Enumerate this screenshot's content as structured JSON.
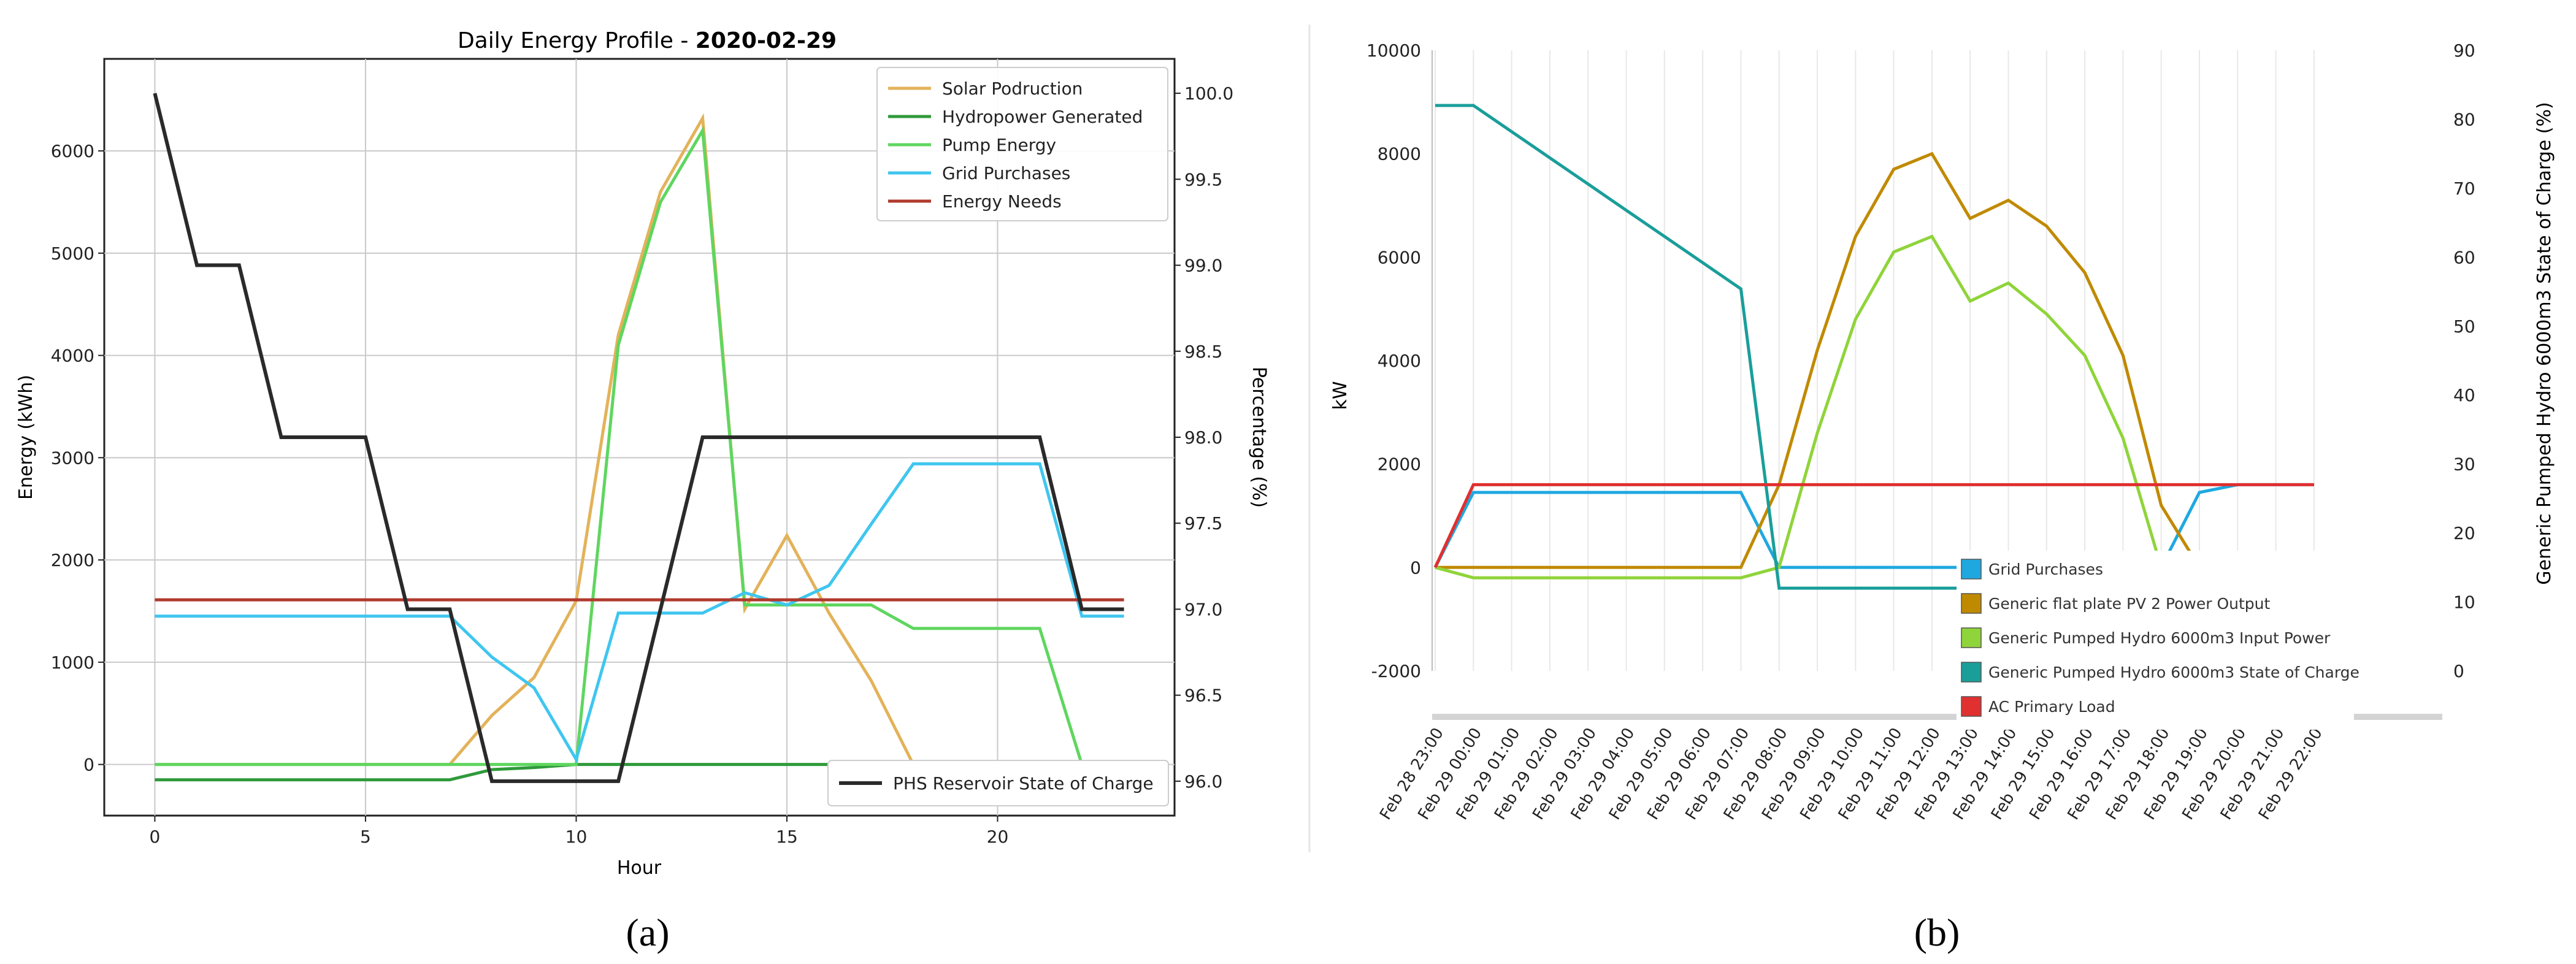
{
  "panel_labels": {
    "a": "(a)",
    "b": "(b)"
  },
  "chart_data": [
    {
      "type": "line",
      "title_prefix": "Daily Energy Profile - ",
      "title_date": "2020-02-29",
      "xlabel": "Hour",
      "ylabel": "Energy (kWh)",
      "y2label": "Percentage (%)",
      "xlim": [
        -1.2,
        24.2
      ],
      "ylim": [
        -500,
        6900
      ],
      "y2lim": [
        95.8,
        100.2
      ],
      "xticks": [
        0,
        5,
        10,
        15,
        20
      ],
      "yticks": [
        0,
        1000,
        2000,
        3000,
        4000,
        5000,
        6000
      ],
      "y2ticks": [
        96.0,
        96.5,
        97.0,
        97.5,
        98.0,
        98.5,
        99.0,
        99.5,
        100.0
      ],
      "grid": true,
      "legend_position": "top-right",
      "legend2_position": "bottom-right",
      "x": [
        0,
        1,
        2,
        3,
        4,
        5,
        6,
        7,
        8,
        9,
        10,
        11,
        12,
        13,
        14,
        15,
        16,
        17,
        18,
        19,
        20,
        21,
        22,
        23
      ],
      "series": [
        {
          "name": "Solar Podruction",
          "color": "#e3b25a",
          "axis": "left",
          "values": [
            0,
            0,
            0,
            0,
            0,
            0,
            0,
            0,
            480,
            850,
            1600,
            4200,
            5600,
            6320,
            1520,
            2240,
            1480,
            820,
            0,
            0,
            0,
            0,
            0,
            0
          ]
        },
        {
          "name": "Hydropower Generated",
          "color": "#2f9a3a",
          "axis": "left",
          "values": [
            -150,
            -150,
            -150,
            -150,
            -150,
            -150,
            -150,
            -150,
            -50,
            -30,
            0,
            0,
            0,
            0,
            0,
            0,
            0,
            0,
            0,
            0,
            0,
            0,
            0,
            0
          ]
        },
        {
          "name": "Pump Energy",
          "color": "#5fd65f",
          "axis": "left",
          "values": [
            0,
            0,
            0,
            0,
            0,
            0,
            0,
            0,
            0,
            0,
            0,
            4100,
            5500,
            6200,
            1560,
            1560,
            1560,
            1560,
            1330,
            1330,
            1330,
            1330,
            0,
            0
          ]
        },
        {
          "name": "Grid Purchases",
          "color": "#3fc6ef",
          "axis": "left",
          "values": [
            1450,
            1450,
            1450,
            1450,
            1450,
            1450,
            1450,
            1450,
            1050,
            750,
            50,
            1480,
            1480,
            1480,
            1680,
            1560,
            1750,
            2350,
            2940,
            2940,
            2940,
            2940,
            1450,
            1450
          ]
        },
        {
          "name": "Energy Needs",
          "color": "#b03a2e",
          "axis": "left",
          "values": [
            1610,
            1610,
            1610,
            1610,
            1610,
            1610,
            1610,
            1610,
            1610,
            1610,
            1610,
            1610,
            1610,
            1610,
            1610,
            1610,
            1610,
            1610,
            1610,
            1610,
            1610,
            1610,
            1610,
            1610
          ]
        },
        {
          "name": "PHS Reservoir State of Charge",
          "color": "#2a2a2a",
          "axis": "right",
          "values": [
            100,
            99,
            99,
            98,
            98,
            98,
            97,
            97,
            96,
            96,
            96,
            96,
            97,
            98,
            98,
            98,
            98,
            98,
            98,
            98,
            98,
            98,
            97,
            97
          ]
        }
      ]
    },
    {
      "type": "line",
      "title": "",
      "ylabel": "kW",
      "y2label": "Generic Pumped Hydro 6000m3 State of Charge (%)",
      "ylim": [
        -2000,
        10000
      ],
      "y2lim": [
        0,
        90
      ],
      "yticks": [
        -2000,
        0,
        2000,
        4000,
        6000,
        8000,
        10000
      ],
      "y2ticks": [
        0,
        10,
        20,
        30,
        40,
        50,
        60,
        70,
        80,
        90
      ],
      "categories": [
        "Feb 28 23:00",
        "Feb 29 00:00",
        "Feb 29 01:00",
        "Feb 29 02:00",
        "Feb 29 03:00",
        "Feb 29 04:00",
        "Feb 29 05:00",
        "Feb 29 06:00",
        "Feb 29 07:00",
        "Feb 29 08:00",
        "Feb 29 09:00",
        "Feb 29 10:00",
        "Feb 29 11:00",
        "Feb 29 12:00",
        "Feb 29 13:00",
        "Feb 29 14:00",
        "Feb 29 15:00",
        "Feb 29 16:00",
        "Feb 29 17:00",
        "Feb 29 18:00",
        "Feb 29 19:00",
        "Feb 29 20:00",
        "Feb 29 21:00",
        "Feb 29 22:00"
      ],
      "grid": true,
      "legend_position": "bottom-center",
      "series": [
        {
          "name": "Grid Purchases",
          "color": "#1fa8e0",
          "axis": "left",
          "values": [
            0,
            1450,
            1450,
            1450,
            1450,
            1450,
            1450,
            1450,
            1450,
            0,
            0,
            0,
            0,
            0,
            0,
            0,
            0,
            0,
            0,
            0,
            1450,
            1600,
            1600,
            1600
          ]
        },
        {
          "name": "Generic flat plate PV 2 Power Output",
          "color": "#c08a00",
          "axis": "left",
          "values": [
            0,
            0,
            0,
            0,
            0,
            0,
            0,
            0,
            0,
            1600,
            4200,
            6400,
            7700,
            8000,
            6750,
            7100,
            6600,
            5700,
            4100,
            1200,
            0,
            0,
            0,
            0
          ]
        },
        {
          "name": "Generic Pumped Hydro 6000m3 Input Power",
          "color": "#8fd43a",
          "axis": "left",
          "values": [
            0,
            -200,
            -200,
            -200,
            -200,
            -200,
            -200,
            -200,
            -200,
            0,
            2600,
            4800,
            6100,
            6400,
            5150,
            5500,
            4900,
            4100,
            2500,
            0,
            0,
            0,
            0,
            0
          ]
        },
        {
          "name": "Generic Pumped Hydro 6000m3 State of Charge",
          "color": "#1a9e9a",
          "axis": "right",
          "values": [
            82,
            82,
            78.2,
            74.4,
            70.6,
            66.8,
            63,
            59.2,
            55.4,
            12,
            12,
            12,
            12,
            12,
            12,
            12,
            12,
            12,
            12,
            12,
            12,
            12,
            12,
            12
          ]
        },
        {
          "name": "AC Primary Load",
          "color": "#e03030",
          "axis": "left",
          "values": [
            0,
            1600,
            1600,
            1600,
            1600,
            1600,
            1600,
            1600,
            1600,
            1600,
            1600,
            1600,
            1600,
            1600,
            1600,
            1600,
            1600,
            1600,
            1600,
            1600,
            1600,
            1600,
            1600,
            1600
          ]
        }
      ]
    }
  ]
}
